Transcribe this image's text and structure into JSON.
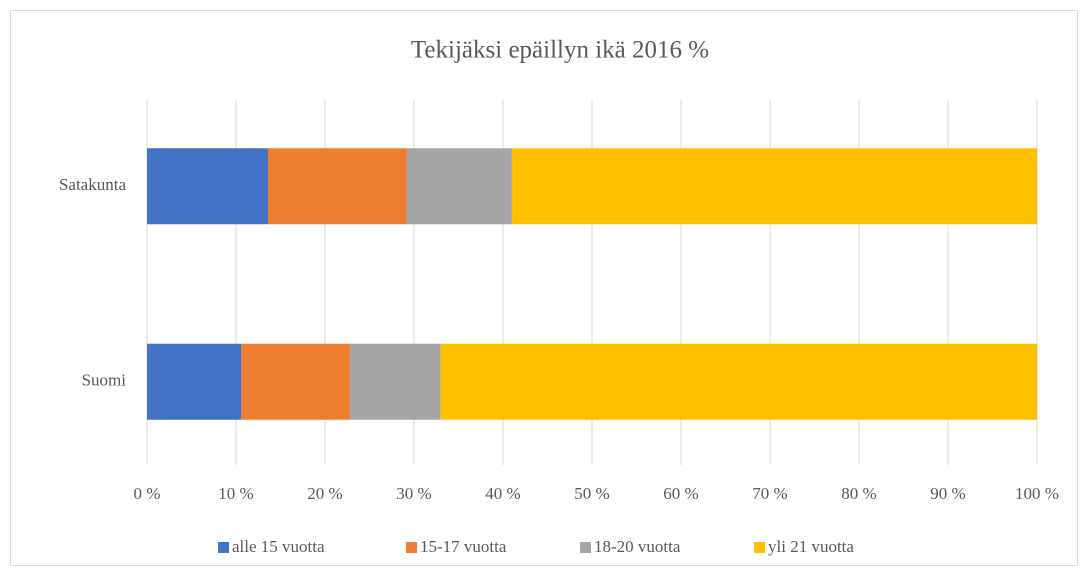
{
  "chart_data": {
    "type": "stacked-barh",
    "title": "Tekijäksi epäillyn ikä 2016 %",
    "categories": [
      "Satakunta",
      "Suomi"
    ],
    "series": [
      {
        "name": "alle 15 vuotta",
        "color": "#4472c4",
        "values": [
          13.6,
          10.6
        ]
      },
      {
        "name": "15-17 vuotta",
        "color": "#ed7d31",
        "values": [
          15.6,
          12.2
        ]
      },
      {
        "name": "18-20 vuotta",
        "color": "#a5a5a5",
        "values": [
          11.8,
          10.2
        ]
      },
      {
        "name": "yli 21 vuotta",
        "color": "#ffc000",
        "values": [
          59.0,
          67.0
        ]
      }
    ],
    "xlim": [
      0,
      100
    ],
    "xticks": [
      {
        "value": 0,
        "label": "0 %"
      },
      {
        "value": 10,
        "label": "10 %"
      },
      {
        "value": 20,
        "label": "20 %"
      },
      {
        "value": 30,
        "label": "30 %"
      },
      {
        "value": 40,
        "label": "40 %"
      },
      {
        "value": 50,
        "label": "50 %"
      },
      {
        "value": 60,
        "label": "60 %"
      },
      {
        "value": 70,
        "label": "70 %"
      },
      {
        "value": 80,
        "label": "80 %"
      },
      {
        "value": 90,
        "label": "90 %"
      },
      {
        "value": 100,
        "label": "100 %"
      }
    ],
    "grid": true,
    "legend": "bottom"
  }
}
